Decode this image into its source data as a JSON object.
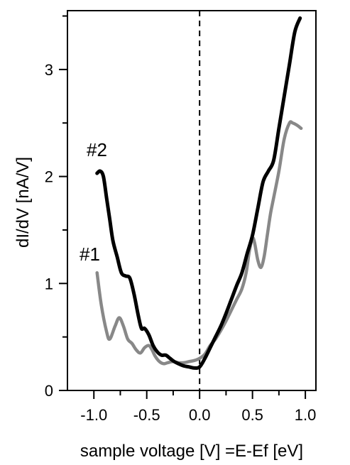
{
  "chart_data": {
    "type": "line",
    "xlabel": "sample voltage [V] =E-Ef [eV]",
    "ylabel": "dI/dV [nA/V]",
    "xlim": [
      -1.25,
      1.1
    ],
    "ylim": [
      0,
      3.55
    ],
    "x_ticks": [
      -1.0,
      -0.5,
      0.0,
      0.5,
      1.0
    ],
    "x_tick_labels": [
      "-1.0",
      "-0.5",
      "0.0",
      "0.5",
      "1.0"
    ],
    "y_ticks": [
      0,
      1,
      2,
      3
    ],
    "y_tick_labels": [
      "0",
      "1",
      "2",
      "3"
    ],
    "reference_line": {
      "x": 0.0,
      "style": "dashed"
    },
    "grid": false,
    "series": [
      {
        "name": "#1",
        "color": "#888888",
        "x": [
          -0.97,
          -0.93,
          -0.88,
          -0.85,
          -0.8,
          -0.76,
          -0.72,
          -0.68,
          -0.64,
          -0.6,
          -0.56,
          -0.52,
          -0.48,
          -0.45,
          -0.42,
          -0.38,
          -0.34,
          -0.3,
          -0.25,
          -0.2,
          -0.15,
          -0.1,
          -0.05,
          0.0,
          0.05,
          0.1,
          0.15,
          0.2,
          0.25,
          0.3,
          0.35,
          0.4,
          0.44,
          0.47,
          0.5,
          0.52,
          0.55,
          0.58,
          0.61,
          0.64,
          0.67,
          0.7,
          0.75,
          0.8,
          0.85,
          0.88,
          0.92,
          0.96
        ],
        "y": [
          1.1,
          0.8,
          0.55,
          0.48,
          0.6,
          0.68,
          0.6,
          0.48,
          0.44,
          0.38,
          0.35,
          0.4,
          0.42,
          0.38,
          0.32,
          0.27,
          0.25,
          0.26,
          0.27,
          0.26,
          0.26,
          0.27,
          0.28,
          0.3,
          0.34,
          0.42,
          0.48,
          0.56,
          0.65,
          0.75,
          0.85,
          0.95,
          1.1,
          1.3,
          1.42,
          1.38,
          1.22,
          1.15,
          1.25,
          1.45,
          1.65,
          1.8,
          2.05,
          2.35,
          2.5,
          2.5,
          2.48,
          2.45
        ]
      },
      {
        "name": "#2",
        "color": "#000000",
        "x": [
          -0.97,
          -0.94,
          -0.91,
          -0.88,
          -0.85,
          -0.82,
          -0.78,
          -0.74,
          -0.7,
          -0.66,
          -0.62,
          -0.58,
          -0.55,
          -0.52,
          -0.48,
          -0.44,
          -0.4,
          -0.36,
          -0.32,
          -0.28,
          -0.24,
          -0.2,
          -0.15,
          -0.1,
          -0.05,
          0.0,
          0.05,
          0.1,
          0.15,
          0.2,
          0.25,
          0.3,
          0.35,
          0.4,
          0.45,
          0.5,
          0.55,
          0.6,
          0.65,
          0.7,
          0.75,
          0.8,
          0.85,
          0.9,
          0.95
        ],
        "y": [
          2.03,
          2.05,
          2.0,
          1.8,
          1.6,
          1.4,
          1.25,
          1.1,
          1.07,
          1.05,
          0.9,
          0.7,
          0.58,
          0.58,
          0.52,
          0.42,
          0.36,
          0.33,
          0.33,
          0.3,
          0.27,
          0.25,
          0.23,
          0.22,
          0.21,
          0.22,
          0.3,
          0.4,
          0.5,
          0.6,
          0.72,
          0.85,
          0.98,
          1.1,
          1.28,
          1.45,
          1.7,
          1.95,
          2.05,
          2.15,
          2.45,
          2.75,
          3.05,
          3.35,
          3.48
        ]
      }
    ]
  }
}
